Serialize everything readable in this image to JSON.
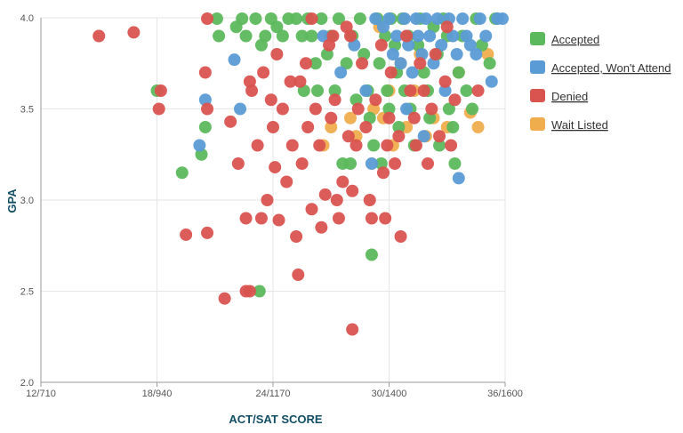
{
  "chart_data": {
    "type": "scatter",
    "xlabel": "ACT/SAT SCORE",
    "ylabel": "GPA",
    "xlim": [
      12,
      36
    ],
    "ylim": [
      2.0,
      4.0
    ],
    "x_ticks": [
      {
        "value": 12,
        "label": "12/710"
      },
      {
        "value": 18,
        "label": "18/940"
      },
      {
        "value": 24,
        "label": "24/1170"
      },
      {
        "value": 30,
        "label": "30/1400"
      },
      {
        "value": 36,
        "label": "36/1600"
      }
    ],
    "y_ticks": [
      {
        "value": 2.0,
        "label": "2.0"
      },
      {
        "value": 2.5,
        "label": "2.5"
      },
      {
        "value": 3.0,
        "label": "3.0"
      },
      {
        "value": 3.5,
        "label": "3.5"
      },
      {
        "value": 4.0,
        "label": "4.0"
      }
    ],
    "grid": true,
    "legend_position": "right",
    "series": [
      {
        "name": "Accepted",
        "color": "#5cb85c",
        "points": [
          [
            18,
            3.6
          ],
          [
            19.3,
            3.15
          ],
          [
            20.3,
            3.25
          ],
          [
            20.5,
            3.4
          ],
          [
            21.1,
            4.0
          ],
          [
            21.2,
            3.9
          ],
          [
            22.1,
            3.95
          ],
          [
            22.4,
            4.0
          ],
          [
            22.6,
            3.9
          ],
          [
            23.1,
            4.0
          ],
          [
            23.4,
            3.85
          ],
          [
            23.6,
            3.9
          ],
          [
            23.9,
            4.0
          ],
          [
            24.2,
            3.95
          ],
          [
            24.5,
            3.9
          ],
          [
            24.8,
            4.0
          ],
          [
            25.2,
            4.0
          ],
          [
            25.5,
            3.9
          ],
          [
            25.6,
            3.6
          ],
          [
            25.8,
            4.0
          ],
          [
            26.0,
            3.9
          ],
          [
            26.2,
            3.75
          ],
          [
            26.3,
            3.6
          ],
          [
            26.5,
            4.0
          ],
          [
            26.8,
            3.8
          ],
          [
            27.0,
            3.9
          ],
          [
            27.2,
            3.6
          ],
          [
            27.4,
            4.0
          ],
          [
            27.6,
            3.2
          ],
          [
            27.8,
            3.75
          ],
          [
            28.0,
            3.2
          ],
          [
            28.1,
            3.9
          ],
          [
            28.3,
            3.55
          ],
          [
            28.5,
            4.0
          ],
          [
            28.7,
            3.8
          ],
          [
            28.9,
            3.6
          ],
          [
            29.0,
            3.45
          ],
          [
            29.1,
            2.7
          ],
          [
            29.2,
            3.3
          ],
          [
            29.4,
            4.0
          ],
          [
            29.5,
            3.75
          ],
          [
            29.6,
            3.2
          ],
          [
            29.8,
            3.9
          ],
          [
            29.9,
            3.6
          ],
          [
            30.0,
            3.5
          ],
          [
            30.1,
            4.0
          ],
          [
            30.3,
            3.85
          ],
          [
            30.4,
            3.7
          ],
          [
            30.5,
            3.4
          ],
          [
            30.7,
            4.0
          ],
          [
            30.8,
            3.6
          ],
          [
            31.0,
            3.9
          ],
          [
            31.1,
            3.5
          ],
          [
            31.3,
            3.3
          ],
          [
            31.5,
            3.85
          ],
          [
            31.6,
            4.0
          ],
          [
            31.8,
            3.7
          ],
          [
            32.0,
            3.6
          ],
          [
            32.1,
            3.45
          ],
          [
            32.3,
            3.95
          ],
          [
            32.5,
            3.8
          ],
          [
            32.6,
            3.3
          ],
          [
            32.8,
            4.0
          ],
          [
            33.0,
            3.9
          ],
          [
            33.1,
            3.5
          ],
          [
            33.3,
            3.4
          ],
          [
            33.4,
            3.2
          ],
          [
            33.6,
            3.7
          ],
          [
            33.8,
            3.9
          ],
          [
            34.0,
            3.6
          ],
          [
            34.3,
            3.5
          ],
          [
            34.5,
            4.0
          ],
          [
            34.8,
            3.85
          ],
          [
            35.2,
            3.75
          ],
          [
            35.5,
            4.0
          ],
          [
            23.3,
            2.5
          ]
        ]
      },
      {
        "name": "Accepted, Won't Attend",
        "color": "#5b9bd5",
        "points": [
          [
            20.2,
            3.3
          ],
          [
            20.5,
            3.55
          ],
          [
            22.0,
            3.77
          ],
          [
            22.3,
            3.5
          ],
          [
            26.6,
            3.9
          ],
          [
            27.5,
            3.7
          ],
          [
            28.2,
            3.85
          ],
          [
            28.8,
            3.6
          ],
          [
            29.1,
            3.2
          ],
          [
            29.3,
            4.0
          ],
          [
            29.7,
            3.95
          ],
          [
            30.0,
            4.0
          ],
          [
            30.2,
            3.8
          ],
          [
            30.4,
            3.9
          ],
          [
            30.6,
            3.75
          ],
          [
            30.8,
            4.0
          ],
          [
            31.0,
            3.85
          ],
          [
            31.2,
            3.7
          ],
          [
            31.4,
            4.0
          ],
          [
            31.5,
            3.9
          ],
          [
            31.7,
            3.8
          ],
          [
            31.9,
            4.0
          ],
          [
            32.1,
            3.9
          ],
          [
            32.3,
            3.75
          ],
          [
            32.5,
            4.0
          ],
          [
            32.7,
            3.85
          ],
          [
            32.9,
            3.6
          ],
          [
            33.1,
            4.0
          ],
          [
            33.3,
            3.9
          ],
          [
            33.5,
            3.8
          ],
          [
            33.6,
            3.12
          ],
          [
            33.8,
            4.0
          ],
          [
            34.0,
            3.9
          ],
          [
            34.2,
            3.85
          ],
          [
            34.5,
            3.8
          ],
          [
            34.7,
            4.0
          ],
          [
            35.0,
            3.9
          ],
          [
            35.3,
            3.65
          ],
          [
            35.6,
            4.0
          ],
          [
            35.9,
            4.0
          ],
          [
            31.8,
            3.35
          ],
          [
            30.9,
            3.5
          ]
        ]
      },
      {
        "name": "Denied",
        "color": "#d9534f",
        "points": [
          [
            15.0,
            3.9
          ],
          [
            16.8,
            3.92
          ],
          [
            18.1,
            3.5
          ],
          [
            18.2,
            3.6
          ],
          [
            19.5,
            2.81
          ],
          [
            20.6,
            4.0
          ],
          [
            20.5,
            3.7
          ],
          [
            20.6,
            3.5
          ],
          [
            20.6,
            2.82
          ],
          [
            21.5,
            2.46
          ],
          [
            21.8,
            3.43
          ],
          [
            22.2,
            3.2
          ],
          [
            22.6,
            2.9
          ],
          [
            22.6,
            2.5
          ],
          [
            22.8,
            2.5
          ],
          [
            22.8,
            3.65
          ],
          [
            22.9,
            3.6
          ],
          [
            23.2,
            3.3
          ],
          [
            23.4,
            2.9
          ],
          [
            23.5,
            3.7
          ],
          [
            23.7,
            3.0
          ],
          [
            24.0,
            3.4
          ],
          [
            24.1,
            3.18
          ],
          [
            24.3,
            2.89
          ],
          [
            24.5,
            3.5
          ],
          [
            24.7,
            3.1
          ],
          [
            24.9,
            3.65
          ],
          [
            25.0,
            3.3
          ],
          [
            25.2,
            2.8
          ],
          [
            25.3,
            2.59
          ],
          [
            25.5,
            3.2
          ],
          [
            25.7,
            3.75
          ],
          [
            25.8,
            3.4
          ],
          [
            26.0,
            2.95
          ],
          [
            26.2,
            3.5
          ],
          [
            26.4,
            3.3
          ],
          [
            26.5,
            2.85
          ],
          [
            26.7,
            3.03
          ],
          [
            26.9,
            3.85
          ],
          [
            27.0,
            3.45
          ],
          [
            27.2,
            3.55
          ],
          [
            27.3,
            3.0
          ],
          [
            27.4,
            2.9
          ],
          [
            27.6,
            3.1
          ],
          [
            27.8,
            3.95
          ],
          [
            27.9,
            3.35
          ],
          [
            28.0,
            3.9
          ],
          [
            28.1,
            3.05
          ],
          [
            28.1,
            2.29
          ],
          [
            28.3,
            3.3
          ],
          [
            28.4,
            3.5
          ],
          [
            28.6,
            3.75
          ],
          [
            28.8,
            3.4
          ],
          [
            29.0,
            3.0
          ],
          [
            29.1,
            2.9
          ],
          [
            29.3,
            3.55
          ],
          [
            29.6,
            3.85
          ],
          [
            29.7,
            3.15
          ],
          [
            29.8,
            2.9
          ],
          [
            29.9,
            3.3
          ],
          [
            30.0,
            3.45
          ],
          [
            30.1,
            3.7
          ],
          [
            30.3,
            3.2
          ],
          [
            30.5,
            3.35
          ],
          [
            30.6,
            2.8
          ],
          [
            30.9,
            3.9
          ],
          [
            31.1,
            3.6
          ],
          [
            31.3,
            3.45
          ],
          [
            31.4,
            3.3
          ],
          [
            31.6,
            3.75
          ],
          [
            31.8,
            3.6
          ],
          [
            32.0,
            3.2
          ],
          [
            32.2,
            3.5
          ],
          [
            32.4,
            3.8
          ],
          [
            32.6,
            3.35
          ],
          [
            32.9,
            3.65
          ],
          [
            33.0,
            3.95
          ],
          [
            33.2,
            3.3
          ],
          [
            33.4,
            3.55
          ],
          [
            34.6,
            3.6
          ],
          [
            26.0,
            4.0
          ],
          [
            27.1,
            3.9
          ],
          [
            25.4,
            3.65
          ],
          [
            24.2,
            3.8
          ],
          [
            23.9,
            3.55
          ]
        ]
      },
      {
        "name": "Wait Listed",
        "color": "#f0ad4e",
        "points": [
          [
            26.6,
            3.3
          ],
          [
            27.0,
            3.4
          ],
          [
            28.0,
            3.45
          ],
          [
            28.3,
            3.35
          ],
          [
            29.2,
            3.5
          ],
          [
            29.7,
            3.45
          ],
          [
            30.0,
            3.6
          ],
          [
            30.2,
            3.3
          ],
          [
            30.6,
            3.75
          ],
          [
            30.9,
            3.4
          ],
          [
            31.3,
            3.6
          ],
          [
            31.6,
            3.8
          ],
          [
            32.3,
            3.45
          ],
          [
            33.0,
            3.4
          ],
          [
            33.6,
            3.7
          ],
          [
            34.2,
            3.48
          ],
          [
            34.6,
            3.4
          ],
          [
            35.1,
            3.8
          ],
          [
            29.5,
            3.95
          ],
          [
            31.9,
            3.35
          ]
        ]
      }
    ]
  }
}
